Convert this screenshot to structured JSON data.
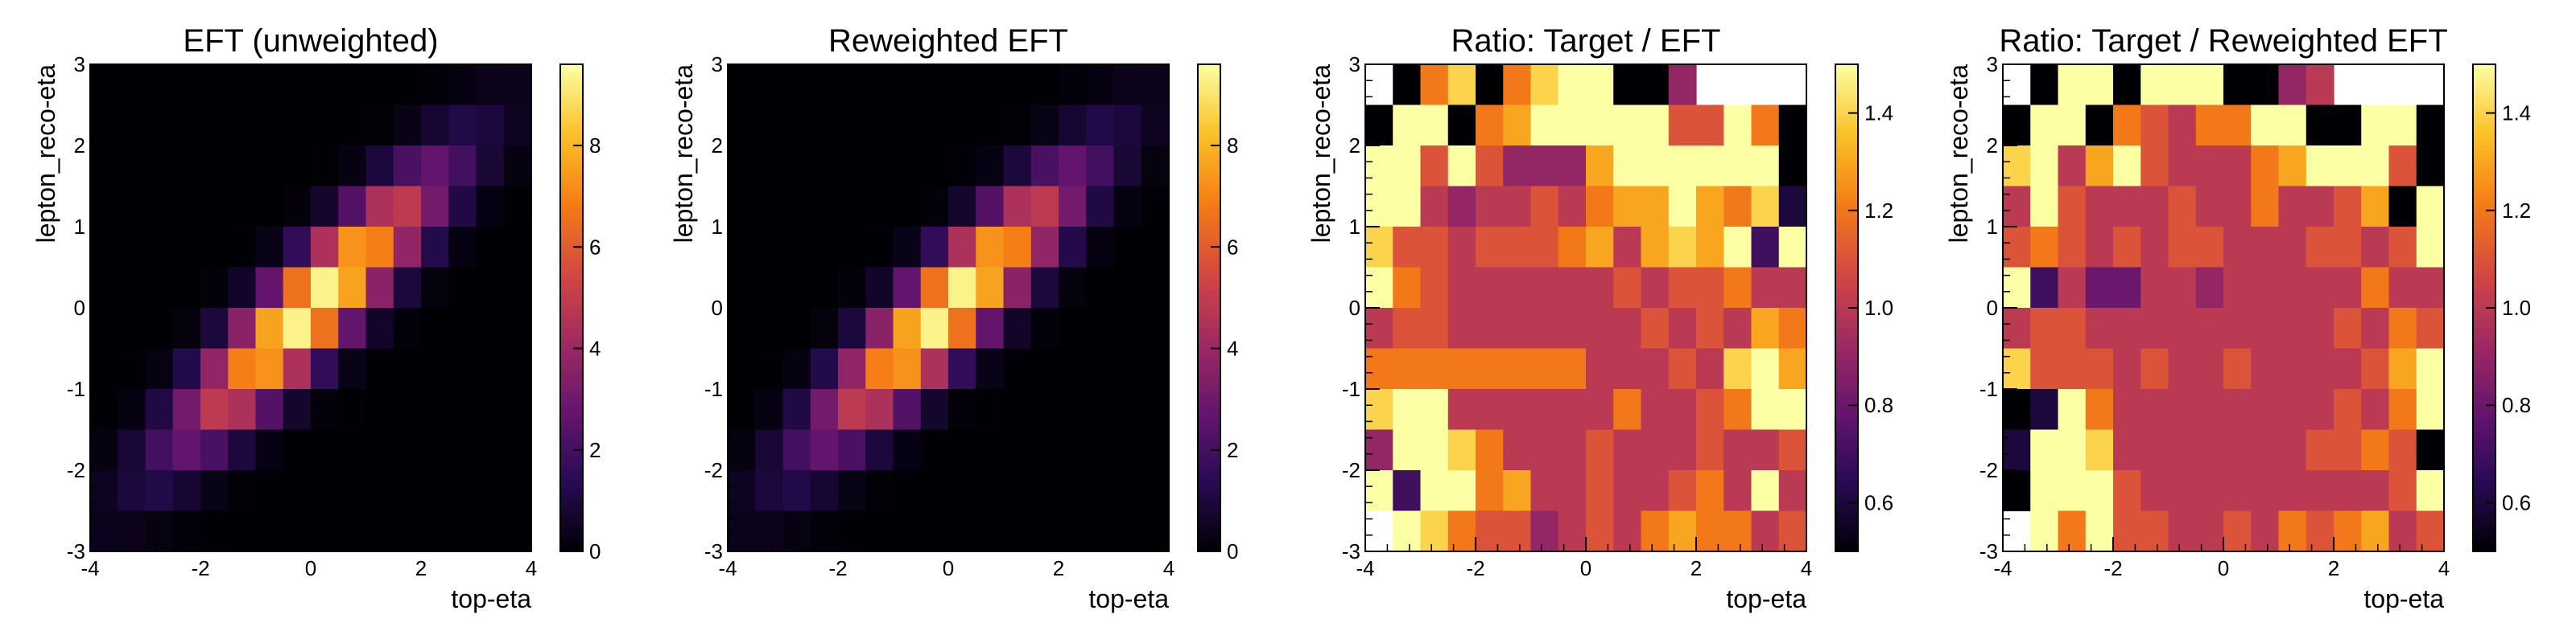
{
  "chart_data": [
    {
      "type": "heatmap",
      "title": "EFT (unweighted)",
      "xlabel": "top-eta",
      "ylabel": "lepton_reco-eta",
      "xlim": [
        -4,
        4
      ],
      "ylim": [
        -3,
        3
      ],
      "x_ticks": [
        "-4",
        "-2",
        "0",
        "2",
        "4"
      ],
      "y_ticks": [
        "-3",
        "-2",
        "-1",
        "0",
        "1",
        "2",
        "3"
      ],
      "colormap": "inferno",
      "colorbar": {
        "range": [
          0,
          9.6
        ],
        "ticks": [
          "0",
          "2",
          "4",
          "6",
          "8"
        ]
      },
      "bins": {
        "nx": 16,
        "ny": 12
      },
      "distribution": {
        "kind": "correlated-gaussian",
        "mean_x": 0,
        "mean_y": 0,
        "sigma_x": 1.55,
        "sigma_y": 1.1,
        "rho": 0.9,
        "peak": 9.6
      }
    },
    {
      "type": "heatmap",
      "title": "Reweighted EFT",
      "xlabel": "top-eta",
      "ylabel": "lepton_reco-eta",
      "xlim": [
        -4,
        4
      ],
      "ylim": [
        -3,
        3
      ],
      "x_ticks": [
        "-4",
        "-2",
        "0",
        "2",
        "4"
      ],
      "y_ticks": [
        "-3",
        "-2",
        "-1",
        "0",
        "1",
        "2",
        "3"
      ],
      "colormap": "inferno",
      "colorbar": {
        "range": [
          0,
          9.6
        ],
        "ticks": [
          "0",
          "2",
          "4",
          "6",
          "8"
        ]
      },
      "bins": {
        "nx": 16,
        "ny": 12
      },
      "distribution": {
        "kind": "correlated-gaussian",
        "mean_x": 0,
        "mean_y": 0,
        "sigma_x": 1.55,
        "sigma_y": 1.1,
        "rho": 0.9,
        "peak": 9.6
      }
    },
    {
      "type": "heatmap",
      "title": "Ratio: Target / EFT",
      "xlabel": "top-eta",
      "ylabel": "lepton_reco-eta",
      "xlim": [
        -4,
        4
      ],
      "ylim": [
        -3,
        3
      ],
      "x_ticks": [
        "-4",
        "-2",
        "0",
        "2",
        "4"
      ],
      "y_ticks": [
        "-3",
        "-2",
        "-1",
        "0",
        "1",
        "2",
        "3"
      ],
      "colormap": "inferno",
      "colorbar": {
        "range": [
          0.5,
          1.5
        ],
        "ticks": [
          "0.6",
          "0.8",
          "1.0",
          "1.2",
          "1.4"
        ]
      },
      "bins": {
        "nx": 16,
        "ny": 12
      },
      "empty_value": null,
      "values": [
        [
          null,
          0.5,
          1.2,
          1.4,
          0.5,
          1.2,
          1.4,
          1.5,
          1.5,
          0.5,
          0.5,
          0.9,
          null,
          null,
          null,
          null
        ],
        [
          0.5,
          1.5,
          1.5,
          0.5,
          1.2,
          1.3,
          1.5,
          1.5,
          1.5,
          1.5,
          1.5,
          1.1,
          1.1,
          1.5,
          1.2,
          0.5
        ],
        [
          1.5,
          1.5,
          1.1,
          1.5,
          1.1,
          0.9,
          0.9,
          0.9,
          1.3,
          1.5,
          1.5,
          1.5,
          1.5,
          1.5,
          1.5,
          0.5
        ],
        [
          1.5,
          1.5,
          1.0,
          0.9,
          1.0,
          1.0,
          1.1,
          1.0,
          1.2,
          1.3,
          1.3,
          1.5,
          1.3,
          1.2,
          1.4,
          0.6
        ],
        [
          1.4,
          1.1,
          1.1,
          1.0,
          1.1,
          1.1,
          1.1,
          1.2,
          1.3,
          1.0,
          1.3,
          1.4,
          1.3,
          1.5,
          0.7,
          1.5
        ],
        [
          1.5,
          1.2,
          1.1,
          1.0,
          1.0,
          1.0,
          1.0,
          1.0,
          1.0,
          1.1,
          1.0,
          1.1,
          1.1,
          1.2,
          1.0,
          1.0
        ],
        [
          1.0,
          1.1,
          1.1,
          1.0,
          1.0,
          1.0,
          1.0,
          1.0,
          1.0,
          1.0,
          1.1,
          1.0,
          1.1,
          1.0,
          1.3,
          1.2
        ],
        [
          1.2,
          1.2,
          1.2,
          1.2,
          1.2,
          1.2,
          1.2,
          1.2,
          1.0,
          1.0,
          1.0,
          1.1,
          1.0,
          1.4,
          1.5,
          1.3
        ],
        [
          1.4,
          1.5,
          1.5,
          1.0,
          1.0,
          1.0,
          1.0,
          1.0,
          1.0,
          1.2,
          1.0,
          1.0,
          1.1,
          1.2,
          1.5,
          1.5
        ],
        [
          0.9,
          1.5,
          1.5,
          1.4,
          1.2,
          1.0,
          1.0,
          1.0,
          1.1,
          1.0,
          1.0,
          1.0,
          1.1,
          1.0,
          1.0,
          1.1
        ],
        [
          1.5,
          0.7,
          1.5,
          1.5,
          1.2,
          1.3,
          1.0,
          1.0,
          1.1,
          1.0,
          1.0,
          1.1,
          1.2,
          1.0,
          1.5,
          1.0
        ],
        [
          null,
          1.5,
          1.4,
          1.2,
          1.1,
          1.1,
          0.9,
          1.0,
          1.1,
          1.0,
          1.2,
          1.3,
          1.2,
          1.2,
          1.0,
          1.1
        ]
      ]
    },
    {
      "type": "heatmap",
      "title": "Ratio: Target / Reweighted EFT",
      "xlabel": "top-eta",
      "ylabel": "lepton_reco-eta",
      "xlim": [
        -4,
        4
      ],
      "ylim": [
        -3,
        3
      ],
      "x_ticks": [
        "-4",
        "-2",
        "0",
        "2",
        "4"
      ],
      "y_ticks": [
        "-3",
        "-2",
        "-1",
        "0",
        "1",
        "2",
        "3"
      ],
      "colormap": "inferno",
      "colorbar": {
        "range": [
          0.5,
          1.5
        ],
        "ticks": [
          "0.6",
          "0.8",
          "1.0",
          "1.2",
          "1.4"
        ]
      },
      "bins": {
        "nx": 16,
        "ny": 12
      },
      "empty_value": null,
      "values": [
        [
          null,
          0.5,
          1.5,
          1.5,
          0.5,
          1.5,
          1.5,
          1.5,
          0.5,
          0.5,
          0.9,
          1.0,
          null,
          null,
          null,
          null
        ],
        [
          0.5,
          1.5,
          1.5,
          0.5,
          1.2,
          1.1,
          1.0,
          1.2,
          1.2,
          1.5,
          1.5,
          0.5,
          0.5,
          1.5,
          1.5,
          0.5
        ],
        [
          1.4,
          1.5,
          1.0,
          1.3,
          1.5,
          1.1,
          1.0,
          1.0,
          1.0,
          1.2,
          1.3,
          1.5,
          1.5,
          1.5,
          1.1,
          0.5
        ],
        [
          1.0,
          1.5,
          1.1,
          1.0,
          1.0,
          1.0,
          1.1,
          1.0,
          1.0,
          1.2,
          1.0,
          1.0,
          1.1,
          1.3,
          0.5,
          1.5
        ],
        [
          1.1,
          1.2,
          1.1,
          1.0,
          1.1,
          1.0,
          1.1,
          1.1,
          1.0,
          1.0,
          1.0,
          1.1,
          1.1,
          1.0,
          1.1,
          1.5
        ],
        [
          1.5,
          0.7,
          1.0,
          0.8,
          0.8,
          1.0,
          1.0,
          0.9,
          1.0,
          1.0,
          1.0,
          1.0,
          1.0,
          1.2,
          1.0,
          1.0
        ],
        [
          1.0,
          1.1,
          1.1,
          1.0,
          1.0,
          1.0,
          1.0,
          1.0,
          1.0,
          1.0,
          1.0,
          1.0,
          1.1,
          1.0,
          1.2,
          1.1
        ],
        [
          1.4,
          1.1,
          1.1,
          1.1,
          1.0,
          1.1,
          1.0,
          1.0,
          1.1,
          1.0,
          1.0,
          1.0,
          1.0,
          1.1,
          1.3,
          1.5
        ],
        [
          0.5,
          0.6,
          1.5,
          1.2,
          1.0,
          1.0,
          1.0,
          1.0,
          1.0,
          1.0,
          1.0,
          1.0,
          1.1,
          1.0,
          1.2,
          1.5
        ],
        [
          0.6,
          1.5,
          1.5,
          1.4,
          1.0,
          1.0,
          1.0,
          1.0,
          1.0,
          1.0,
          1.0,
          1.1,
          1.1,
          1.2,
          1.1,
          0.5
        ],
        [
          0.5,
          1.5,
          1.5,
          1.5,
          1.1,
          1.0,
          1.0,
          1.0,
          1.0,
          1.0,
          1.0,
          1.0,
          1.0,
          1.0,
          1.1,
          1.5
        ],
        [
          null,
          1.5,
          1.2,
          1.5,
          1.1,
          1.1,
          1.0,
          1.0,
          1.1,
          1.0,
          1.2,
          1.1,
          1.2,
          1.3,
          1.0,
          1.1
        ]
      ]
    }
  ]
}
